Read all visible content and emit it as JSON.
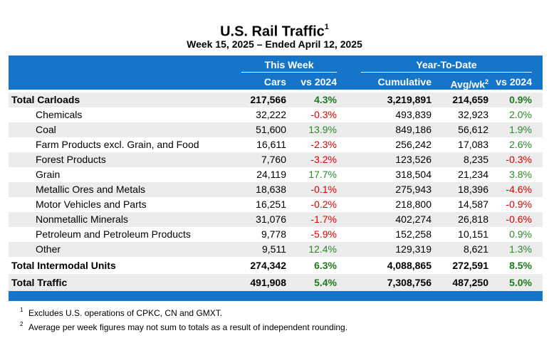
{
  "title": "U.S. Rail Traffic",
  "title_sup": "1",
  "subtitle": "Week 15, 2025 – Ended April 12, 2025",
  "header": {
    "this_week": "This Week",
    "ytd": "Year-To-Date",
    "cars": "Cars",
    "vs2024_week": "vs 2024",
    "cumulative": "Cumulative",
    "avgwk": "Avg/wk",
    "avgwk_sup": "2",
    "vs2024_ytd": "vs 2024"
  },
  "rows": [
    {
      "label": "Total Carloads",
      "cars": "217,566",
      "vs_week": "4.3%",
      "cumulative": "3,219,891",
      "avg": "214,659",
      "vs_ytd": "0.9%"
    },
    {
      "label": "Chemicals",
      "cars": "32,222",
      "vs_week": "-0.3%",
      "cumulative": "493,839",
      "avg": "32,923",
      "vs_ytd": "2.0%"
    },
    {
      "label": "Coal",
      "cars": "51,600",
      "vs_week": "13.9%",
      "cumulative": "849,186",
      "avg": "56,612",
      "vs_ytd": "1.9%"
    },
    {
      "label": "Farm Products excl. Grain, and Food",
      "cars": "16,611",
      "vs_week": "-2.3%",
      "cumulative": "256,242",
      "avg": "17,083",
      "vs_ytd": "2.6%"
    },
    {
      "label": "Forest Products",
      "cars": "7,760",
      "vs_week": "-3.2%",
      "cumulative": "123,526",
      "avg": "8,235",
      "vs_ytd": "-0.3%"
    },
    {
      "label": "Grain",
      "cars": "24,119",
      "vs_week": "17.7%",
      "cumulative": "318,504",
      "avg": "21,234",
      "vs_ytd": "3.8%"
    },
    {
      "label": "Metallic Ores and Metals",
      "cars": "18,638",
      "vs_week": "-0.1%",
      "cumulative": "275,943",
      "avg": "18,396",
      "vs_ytd": "-4.6%"
    },
    {
      "label": "Motor Vehicles and Parts",
      "cars": "16,251",
      "vs_week": "-0.2%",
      "cumulative": "218,800",
      "avg": "14,587",
      "vs_ytd": "-0.9%"
    },
    {
      "label": "Nonmetallic Minerals",
      "cars": "31,076",
      "vs_week": "-1.7%",
      "cumulative": "402,274",
      "avg": "26,818",
      "vs_ytd": "-0.6%"
    },
    {
      "label": "Petroleum and Petroleum Products",
      "cars": "9,778",
      "vs_week": "-5.9%",
      "cumulative": "152,258",
      "avg": "10,151",
      "vs_ytd": "0.9%"
    },
    {
      "label": "Other",
      "cars": "9,511",
      "vs_week": "12.4%",
      "cumulative": "129,319",
      "avg": "8,621",
      "vs_ytd": "1.3%"
    },
    {
      "label": "Total Intermodal Units",
      "cars": "274,342",
      "vs_week": "6.3%",
      "cumulative": "4,088,865",
      "avg": "272,591",
      "vs_ytd": "8.5%"
    },
    {
      "label": "Total Traffic",
      "cars": "491,908",
      "vs_week": "5.4%",
      "cumulative": "7,308,756",
      "avg": "487,250",
      "vs_ytd": "5.0%"
    }
  ],
  "notes": [
    {
      "sup": "1",
      "text": "Excludes U.S. operations of CPKC, CN and GMXT."
    },
    {
      "sup": "2",
      "text": "Average per week figures may not sum to totals as a result of independent rounding."
    }
  ],
  "colors": {
    "header_bg": "#1576c9",
    "positive": "#2a8a2a",
    "negative": "#e00000",
    "shade": "#ececec"
  }
}
